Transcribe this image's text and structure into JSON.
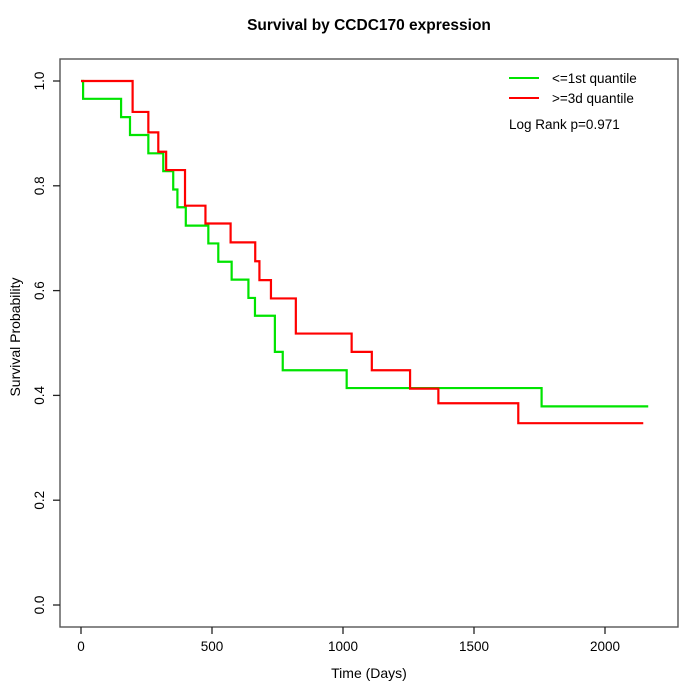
{
  "title": "Survival by CCDC170 expression",
  "x_axis": {
    "label": "Time (Days)",
    "tick_labels": [
      "0",
      "500",
      "1000",
      "1500",
      "2000"
    ]
  },
  "y_axis": {
    "label": "Survival Probability",
    "tick_labels": [
      "0.0",
      "0.2",
      "0.4",
      "0.6",
      "0.8",
      "1.0"
    ]
  },
  "legend": {
    "items": [
      {
        "label": "<=1st quantile",
        "color": "#00E400"
      },
      {
        "label": ">=3d quantile",
        "color": "#FF0000"
      }
    ]
  },
  "stats": {
    "log_rank_label": "Log Rank p=0.971"
  },
  "chart_data": {
    "type": "line",
    "subtype": "kaplan-meier-step",
    "title": "Survival by CCDC170 expression",
    "xlabel": "Time (Days)",
    "ylabel": "Survival Probability",
    "xlim": [
      -90,
      2280
    ],
    "ylim": [
      -0.04,
      1.04
    ],
    "x_ticks": [
      0,
      500,
      1000,
      1500,
      2000
    ],
    "y_ticks": [
      0.0,
      0.2,
      0.4,
      0.6,
      0.8,
      1.0
    ],
    "grid": false,
    "legend_position": "topright",
    "annotation": "Log Rank p=0.971",
    "series": [
      {
        "name": "<=1st quantile",
        "color": "#00E400",
        "end_time": 2165,
        "steps": [
          [
            0,
            1.0
          ],
          [
            8,
            0.966
          ],
          [
            153,
            0.931
          ],
          [
            187,
            0.897
          ],
          [
            257,
            0.862
          ],
          [
            314,
            0.828
          ],
          [
            352,
            0.793
          ],
          [
            368,
            0.759
          ],
          [
            400,
            0.724
          ],
          [
            486,
            0.69
          ],
          [
            524,
            0.655
          ],
          [
            575,
            0.621
          ],
          [
            639,
            0.586
          ],
          [
            664,
            0.552
          ],
          [
            740,
            0.483
          ],
          [
            770,
            0.448
          ],
          [
            1014,
            0.414
          ],
          [
            1758,
            0.379
          ]
        ]
      },
      {
        "name": ">=3d quantile",
        "color": "#FF0000",
        "end_time": 2146,
        "steps": [
          [
            0,
            1.0
          ],
          [
            197,
            0.941
          ],
          [
            257,
            0.902
          ],
          [
            295,
            0.865
          ],
          [
            325,
            0.83
          ],
          [
            397,
            0.762
          ],
          [
            475,
            0.728
          ],
          [
            571,
            0.692
          ],
          [
            665,
            0.656
          ],
          [
            681,
            0.62
          ],
          [
            725,
            0.585
          ],
          [
            820,
            0.518
          ],
          [
            1033,
            0.483
          ],
          [
            1110,
            0.448
          ],
          [
            1256,
            0.413
          ],
          [
            1364,
            0.385
          ],
          [
            1669,
            0.347
          ]
        ]
      }
    ]
  }
}
